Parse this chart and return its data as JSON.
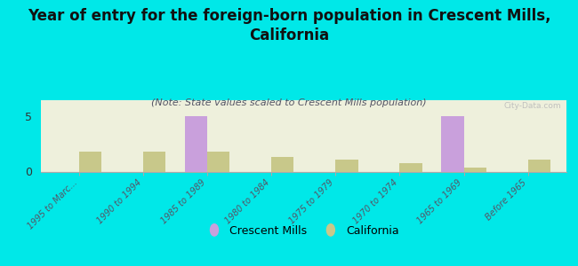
{
  "title": "Year of entry for the foreign-born population in Crescent Mills,\nCalifornia",
  "subtitle": "(Note: State values scaled to Crescent Mills population)",
  "background_color": "#00e8e8",
  "plot_bg": "#eef0dc",
  "categories": [
    "1995 to Marc...",
    "1990 to 1994",
    "1985 to 1989",
    "1980 to 1984",
    "1975 to 1979",
    "1970 to 1974",
    "1965 to 1969",
    "Before 1965"
  ],
  "crescent_mills": [
    0,
    0,
    5,
    0,
    0,
    0,
    5,
    0
  ],
  "california": [
    1.8,
    1.8,
    1.8,
    1.3,
    1.1,
    0.8,
    0.4,
    1.1
  ],
  "crescent_color": "#c9a0dc",
  "california_color": "#c8c88a",
  "ylim": [
    0,
    6.5
  ],
  "yticks": [
    0,
    5
  ],
  "bar_width": 0.35,
  "watermark": "City-Data.com",
  "legend_labels": [
    "Crescent Mills",
    "California"
  ],
  "title_fontsize": 12,
  "subtitle_fontsize": 8
}
